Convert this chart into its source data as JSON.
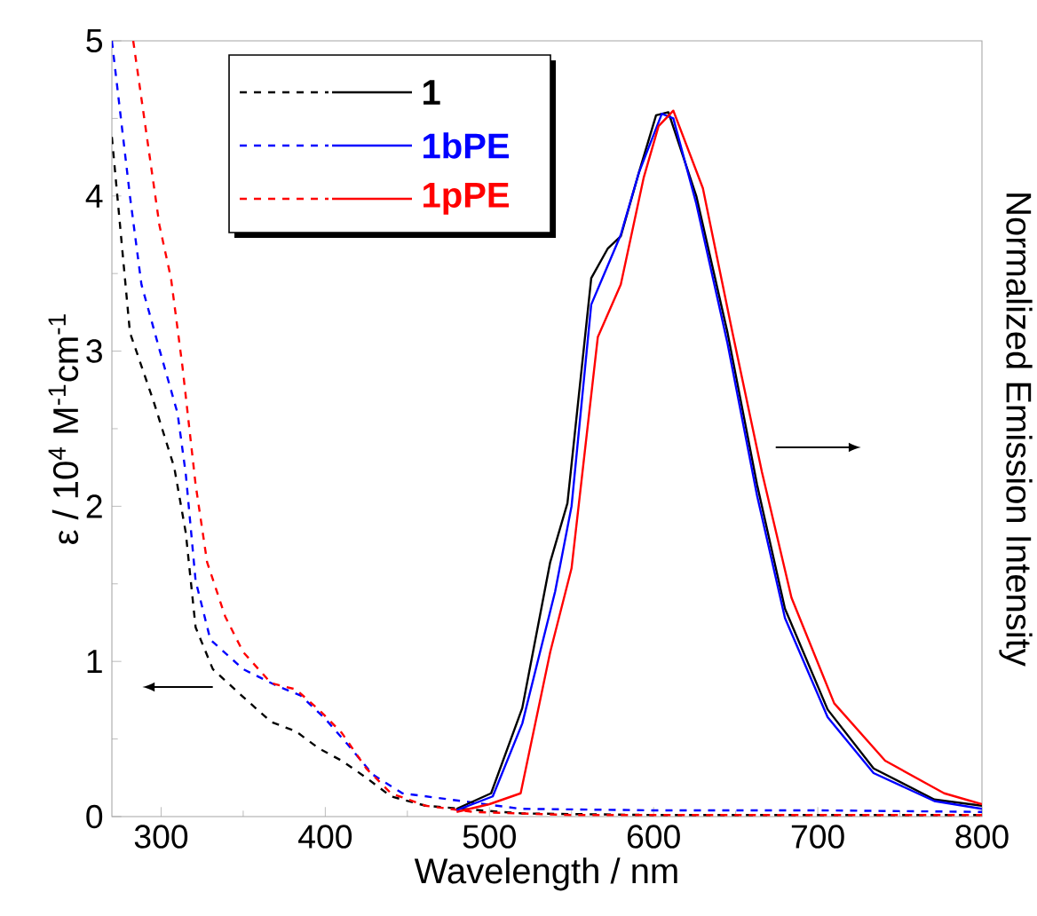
{
  "chart_data": {
    "type": "line",
    "xlabel": "Wavelength / nm",
    "ylabel": "ε / 10$^{4}$ M$^{-1}$cm$^{-1}$",
    "y2label": "Normalized Emission Intensity",
    "xlim": [
      270,
      800
    ],
    "ylim": [
      0,
      5
    ],
    "xticks": [
      300,
      400,
      500,
      600,
      700,
      800
    ],
    "yticks": [
      0,
      1,
      2,
      3,
      4,
      5
    ],
    "legend": "top left",
    "series": [
      {
        "name": "1",
        "color": "#000000",
        "line_style": "dashed",
        "x": [
          270,
          281,
          295.6,
          308,
          315,
          321,
          331.5,
          349,
          367,
          382,
          396,
          410,
          425,
          440,
          461,
          483,
          520,
          600,
          700,
          800
        ],
        "values": [
          4.38,
          3.12,
          2.67,
          2.25,
          1.83,
          1.22,
          0.95,
          0.78,
          0.61,
          0.55,
          0.44,
          0.36,
          0.25,
          0.13,
          0.07,
          0.05,
          0.02,
          0.01,
          0.01,
          0.01
        ]
      },
      {
        "name": "1bPE",
        "color": "#0000ff",
        "line_style": "dashed",
        "x": [
          270,
          281,
          288,
          299,
          310,
          315,
          321,
          330,
          350,
          371,
          385,
          400,
          414,
          429,
          447,
          483,
          519,
          600,
          700,
          800
        ],
        "values": [
          5.0,
          4.0,
          3.43,
          3.01,
          2.6,
          2.21,
          1.52,
          1.14,
          0.95,
          0.84,
          0.78,
          0.63,
          0.46,
          0.27,
          0.15,
          0.1,
          0.05,
          0.04,
          0.04,
          0.03
        ]
      },
      {
        "name": "1pPE",
        "color": "#ff0000",
        "line_style": "dashed",
        "x": [
          283,
          299,
          306,
          313,
          321,
          328,
          339,
          350,
          367,
          382,
          396,
          410,
          425,
          440,
          461,
          490,
          550,
          650,
          800
        ],
        "values": [
          5.0,
          3.81,
          3.47,
          2.9,
          2.14,
          1.64,
          1.29,
          1.06,
          0.86,
          0.82,
          0.69,
          0.54,
          0.31,
          0.15,
          0.07,
          0.03,
          0.01,
          0.01,
          0.01
        ]
      },
      {
        "color": "#000000",
        "line_style": "solid",
        "x": [
          480,
          501,
          520,
          537,
          547.5,
          562,
          572,
          580,
          591,
          601.5,
          609,
          626,
          645,
          663,
          680,
          706,
          734,
          771,
          800
        ],
        "values": [
          0.05,
          0.15,
          0.7,
          1.64,
          2.02,
          3.47,
          3.66,
          3.74,
          4.15,
          4.52,
          4.54,
          4.0,
          3.12,
          2.14,
          1.34,
          0.69,
          0.31,
          0.11,
          0.07
        ]
      },
      {
        "color": "#0000ff",
        "line_style": "solid",
        "x": [
          480,
          502,
          520,
          540,
          550,
          562,
          572,
          580,
          591,
          605,
          612,
          626,
          645,
          663,
          680,
          706,
          734,
          771,
          800
        ],
        "values": [
          0.04,
          0.13,
          0.6,
          1.45,
          2.0,
          3.3,
          3.55,
          3.75,
          4.15,
          4.53,
          4.5,
          3.95,
          3.05,
          2.07,
          1.28,
          0.64,
          0.28,
          0.1,
          0.05
        ]
      },
      {
        "color": "#ff0000",
        "line_style": "solid",
        "x": [
          480,
          500,
          519,
          537,
          550,
          566,
          580,
          594,
          603,
          612,
          630,
          648,
          666,
          684,
          710,
          741,
          777,
          800
        ],
        "values": [
          0.03,
          0.08,
          0.15,
          1.06,
          1.6,
          3.09,
          3.43,
          4.12,
          4.45,
          4.55,
          4.05,
          3.12,
          2.22,
          1.41,
          0.73,
          0.36,
          0.15,
          0.08
        ]
      }
    ]
  }
}
